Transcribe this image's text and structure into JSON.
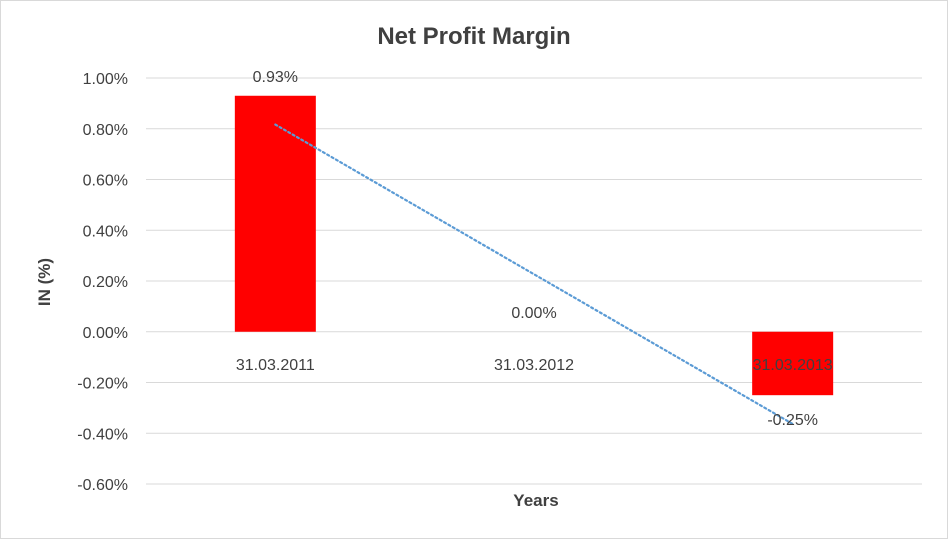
{
  "chart_data": {
    "type": "bar",
    "title": "Net Profit Margin",
    "xlabel": "Years",
    "ylabel": "IN (%)",
    "categories": [
      "31.03.2011",
      "31.03.2012",
      "31.03.2013"
    ],
    "values": [
      0.93,
      0.0,
      -0.25
    ],
    "data_labels": [
      "0.93%",
      "0.00%",
      "-0.25%"
    ],
    "ylim": [
      -0.6,
      1.0
    ],
    "yticks": [
      1.0,
      0.8,
      0.6,
      0.4,
      0.2,
      0.0,
      -0.2,
      -0.4,
      -0.6
    ],
    "ytick_labels": [
      "1.00%",
      "0.80%",
      "0.60%",
      "0.40%",
      "0.20%",
      "0.00%",
      "-0.20%",
      "-0.40%",
      "-0.60%"
    ],
    "grid": true,
    "trendline": {
      "type": "linear",
      "style": "dotted",
      "color": "#5b9bd5"
    },
    "bar_color": "#ff0000",
    "gridline_color": "#d9d9d9"
  }
}
